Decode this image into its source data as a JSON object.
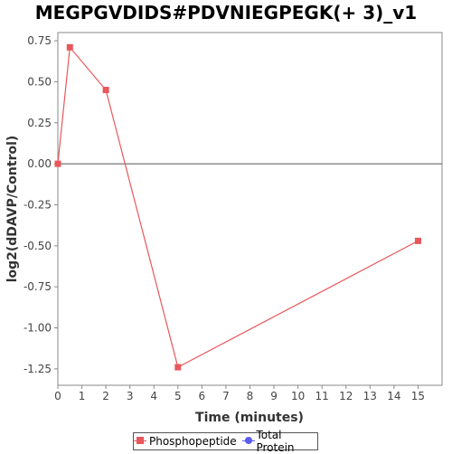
{
  "chart_data": {
    "type": "line",
    "title": "MEGPGVDIDS#PDVNIEGPEGK(+ 3)_v1",
    "xlabel": "Time (minutes)",
    "ylabel": "log2(dDAVP/Control)",
    "xlim": [
      0,
      16
    ],
    "ylim": [
      -1.35,
      0.8
    ],
    "x_ticks": [
      0,
      1,
      2,
      3,
      4,
      5,
      6,
      7,
      8,
      9,
      10,
      11,
      12,
      13,
      14,
      15
    ],
    "y_ticks": [
      0.75,
      0.5,
      0.25,
      0.0,
      -0.25,
      -0.5,
      -0.75,
      -1.0,
      -1.25
    ],
    "y_tick_labels": [
      "0.75",
      "0.50",
      "0.25",
      "0.00",
      "-0.25",
      "-0.50",
      "-0.75",
      "-1.00",
      "-1.25"
    ],
    "grid": false,
    "zero_line": true,
    "legend_position": "bottom",
    "series": [
      {
        "name": "Phosphopeptide",
        "color": "#e8575a",
        "marker": "square",
        "x": [
          0,
          0.5,
          2,
          5,
          15
        ],
        "y": [
          0.0,
          0.71,
          0.45,
          -1.24,
          -0.47
        ]
      },
      {
        "name": "Total Protein",
        "color": "#5b5bf0",
        "marker": "circle",
        "x": [],
        "y": []
      }
    ]
  }
}
